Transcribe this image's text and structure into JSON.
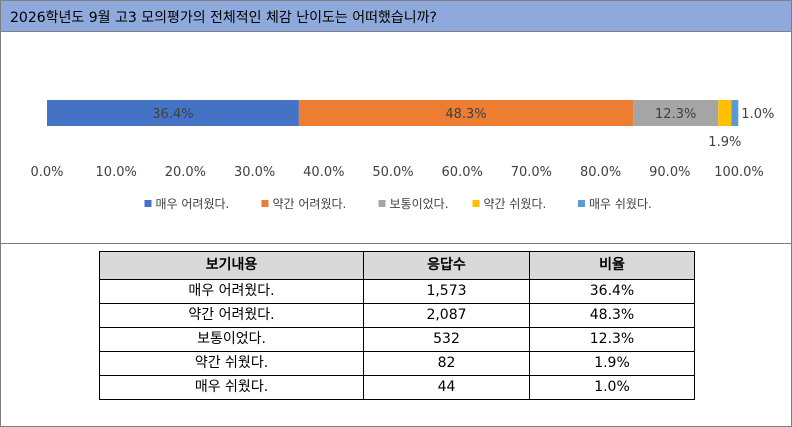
{
  "title": "2026학년도 9월 고3 모의평가의 전체적인 체감 난이도는 어떠했습니까?",
  "chart_data": {
    "type": "bar",
    "orientation": "horizontal",
    "stacked": true,
    "xlim": [
      0,
      100
    ],
    "xticks": [
      "0.0%",
      "10.0%",
      "20.0%",
      "30.0%",
      "40.0%",
      "50.0%",
      "60.0%",
      "70.0%",
      "80.0%",
      "90.0%",
      "100.0%"
    ],
    "legend_position": "bottom",
    "series": [
      {
        "name": "매우 어려웠다.",
        "value": 36.4,
        "label": "36.4%",
        "color": "#4472c4"
      },
      {
        "name": "약간 어려웠다.",
        "value": 48.3,
        "label": "48.3%",
        "color": "#ed7d31"
      },
      {
        "name": "보통이었다.",
        "value": 12.3,
        "label": "12.3%",
        "color": "#a5a5a5"
      },
      {
        "name": "약간 쉬웠다.",
        "value": 1.9,
        "label": "1.9%",
        "color": "#ffc000"
      },
      {
        "name": "매우 쉬웠다.",
        "value": 1.0,
        "label": "1.0%",
        "color": "#5b9bd5"
      }
    ]
  },
  "table": {
    "headers": [
      "보기내용",
      "응답수",
      "비율"
    ],
    "rows": [
      {
        "option": "매우 어려웠다.",
        "count": "1,573",
        "ratio": "36.4%"
      },
      {
        "option": "약간 어려웠다.",
        "count": "2,087",
        "ratio": "48.3%"
      },
      {
        "option": "보통이었다.",
        "count": "532",
        "ratio": "12.3%"
      },
      {
        "option": "약간 쉬웠다.",
        "count": "82",
        "ratio": "1.9%"
      },
      {
        "option": "매우 쉬웠다.",
        "count": "44",
        "ratio": "1.0%"
      }
    ]
  }
}
